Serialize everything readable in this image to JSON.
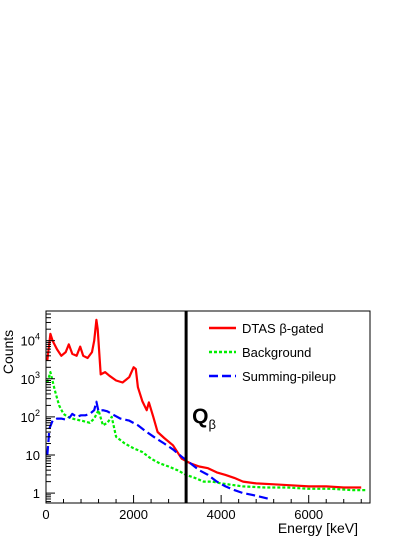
{
  "chart_data": {
    "type": "line",
    "xlabel": "Energy [keV]",
    "ylabel": "Counts",
    "xlim": [
      0,
      7400
    ],
    "ylim": [
      0.55,
      60000
    ],
    "yscale": "log",
    "grid": false,
    "legend_position": "top-right",
    "x_ticks": [
      0,
      2000,
      4000,
      6000
    ],
    "x_tick_labels": [
      "0",
      "2000",
      "4000",
      "6000"
    ],
    "y_ticks": [
      1,
      10,
      100,
      1000,
      10000
    ],
    "y_tick_labels": [
      {
        "base": "1",
        "exp": ""
      },
      {
        "base": "10",
        "exp": ""
      },
      {
        "base": "10",
        "exp": "2"
      },
      {
        "base": "10",
        "exp": "3"
      },
      {
        "base": "10",
        "exp": "4"
      }
    ],
    "annotation": {
      "text": "Q",
      "subscript": "β",
      "x": 3200
    },
    "series": [
      {
        "name": "DTAS β-gated",
        "color": "#ff0000",
        "style": "solid",
        "x": [
          30,
          100,
          150,
          250,
          350,
          450,
          520,
          600,
          700,
          780,
          850,
          950,
          1050,
          1100,
          1150,
          1180,
          1250,
          1350,
          1450,
          1600,
          1750,
          1900,
          2000,
          2050,
          2100,
          2200,
          2300,
          2350,
          2450,
          2550,
          2700,
          2900,
          3100,
          3300,
          3500,
          3700,
          3900,
          4100,
          4300,
          4500,
          4800,
          5200,
          5600,
          6000,
          6400,
          6800,
          7200
        ],
        "values": [
          3000,
          15000,
          10000,
          6000,
          4000,
          5000,
          8000,
          4500,
          4000,
          7000,
          4000,
          3500,
          5000,
          10000,
          35000,
          20000,
          1300,
          1500,
          1200,
          900,
          800,
          1100,
          2000,
          1800,
          600,
          260,
          150,
          240,
          100,
          40,
          28,
          18,
          8,
          6,
          5,
          4.5,
          3.5,
          3,
          2.5,
          2,
          1.8,
          1.7,
          1.6,
          1.5,
          1.5,
          1.4,
          1.4
        ]
      },
      {
        "name": "Background",
        "color": "#00ee00",
        "style": "dashed",
        "x": [
          30,
          100,
          200,
          300,
          400,
          500,
          600,
          700,
          800,
          900,
          1000,
          1100,
          1200,
          1300,
          1400,
          1500,
          1600,
          1800,
          2000,
          2200,
          2400,
          2600,
          2800,
          3000,
          3200,
          3400,
          3600,
          3800,
          4000,
          4500,
          5000,
          5500,
          6000,
          6500,
          7000,
          7300
        ],
        "values": [
          800,
          1500,
          500,
          200,
          120,
          100,
          90,
          85,
          80,
          75,
          70,
          90,
          150,
          60,
          70,
          100,
          30,
          20,
          15,
          12,
          8,
          6,
          5,
          4,
          3,
          2.5,
          2,
          2,
          1.8,
          1.5,
          1.4,
          1.4,
          1.3,
          1.3,
          1.2,
          1.2
        ]
      },
      {
        "name": "Summing-pileup",
        "color": "#0000ff",
        "style": "dashed",
        "x": [
          30,
          80,
          150,
          250,
          350,
          450,
          550,
          600,
          700,
          800,
          900,
          1000,
          1100,
          1150,
          1200,
          1300,
          1400,
          1500,
          1700,
          1900,
          2100,
          2300,
          2500,
          2700,
          2900,
          3100,
          3300,
          3500,
          3700,
          3900,
          4100,
          4300,
          4500,
          4700,
          4900,
          5100
        ],
        "values": [
          10,
          50,
          80,
          90,
          90,
          85,
          100,
          120,
          100,
          110,
          110,
          120,
          150,
          250,
          140,
          150,
          140,
          120,
          90,
          80,
          60,
          40,
          28,
          20,
          14,
          9,
          6,
          4,
          3,
          2,
          1.5,
          1.2,
          1,
          0.9,
          0.8,
          0.7
        ]
      }
    ]
  }
}
